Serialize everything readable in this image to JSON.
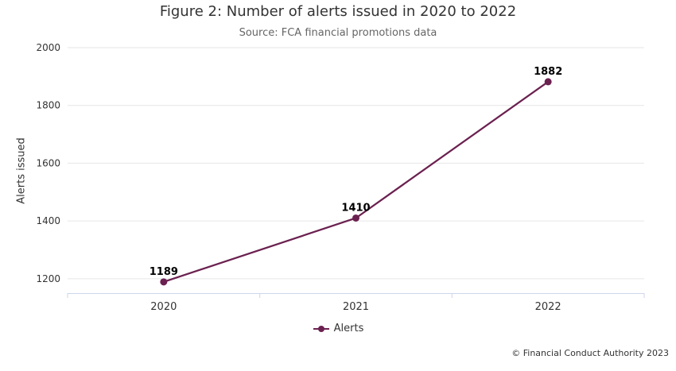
{
  "chart_data": {
    "type": "line",
    "title": "Figure 2: Number of alerts issued in 2020 to 2022",
    "subtitle": "Source: FCA financial promotions data",
    "categories": [
      "2020",
      "2021",
      "2022"
    ],
    "series": [
      {
        "name": "Alerts",
        "values": [
          1189,
          1410,
          1882
        ]
      }
    ],
    "ylabel": "Alerts issued",
    "xlabel": "",
    "ylim": [
      1150,
      2000
    ],
    "yticks": [
      1200,
      1400,
      1600,
      1800,
      2000
    ],
    "grid": "horizontal",
    "legend_position": "bottom",
    "data_labels_shown": true
  },
  "colors": {
    "series": "#6b2150",
    "grid": "#e6e6e6",
    "axis": "#ccd6eb",
    "title": "#333333",
    "subtitle": "#666666",
    "tick_label": "#333333",
    "data_label": "#000000"
  },
  "footer": {
    "copyright": "© Financial Conduct Authority 2023"
  }
}
